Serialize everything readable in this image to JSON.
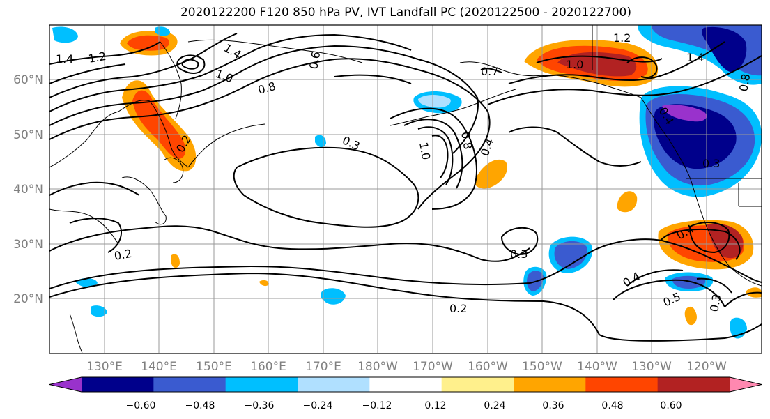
{
  "figure": {
    "title": "2020122200 F120 850 hPa PV, IVT Landfall PC (2020122500 - 2020122700)"
  },
  "map": {
    "lat_labels": [
      "60°N",
      "50°N",
      "40°N",
      "30°N",
      "20°N"
    ],
    "lon_labels": [
      "130°E",
      "140°E",
      "150°E",
      "160°E",
      "170°E",
      "180°W",
      "170°W",
      "160°W",
      "150°W",
      "140°W",
      "130°W",
      "120°W"
    ],
    "contour_labels": [
      "1.4",
      "1.2",
      "1.4",
      "1.0",
      "0.8",
      "0.6",
      "1.2",
      "0.7",
      "1.0",
      "1.4",
      "0.3",
      "0.2",
      "0.4",
      "0.8",
      "1.0",
      "0.8",
      "0.4",
      "0.3",
      "0.3",
      "0.2",
      "0.2",
      "0.4",
      "0.5",
      "0.3",
      "0.4"
    ],
    "feature_colors": {
      "coast": "#000000",
      "grid": "#999999",
      "contour": "#000000"
    }
  },
  "colorbar": {
    "tick_labels": [
      "−0.60",
      "−0.48",
      "−0.36",
      "−0.24",
      "−0.12",
      "0.12",
      "0.24",
      "0.36",
      "0.48",
      "0.60"
    ],
    "bins": [
      {
        "color": "#9932cc"
      },
      {
        "color": "#00008b"
      },
      {
        "color": "#3a5bd0"
      },
      {
        "color": "#00bfff"
      },
      {
        "color": "#b0e0ff"
      },
      {
        "color": "#ffffff"
      },
      {
        "color": "#fff08c"
      },
      {
        "color": "#ffa500"
      },
      {
        "color": "#ff4500"
      },
      {
        "color": "#b22222"
      },
      {
        "color": "#ff88b0"
      }
    ]
  }
}
